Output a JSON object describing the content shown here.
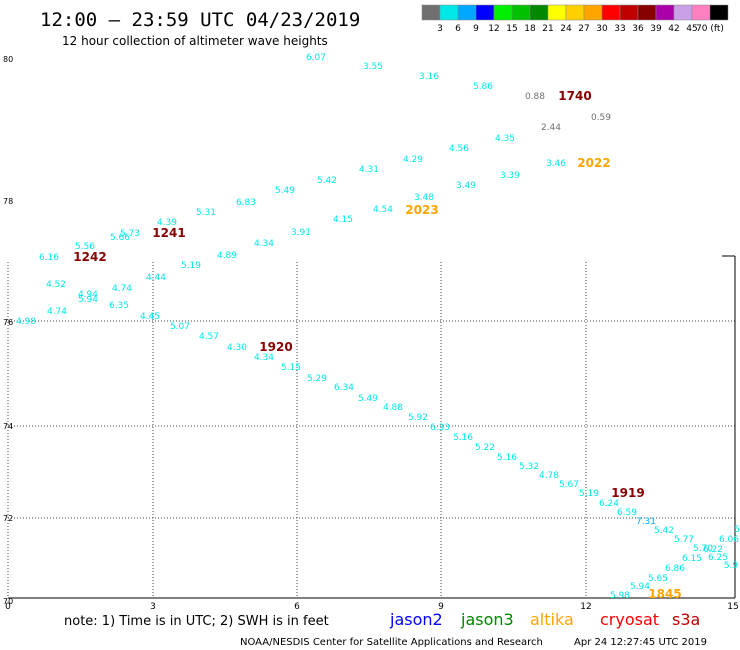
{
  "header": {
    "title": "12:00 – 23:59 UTC 04/23/2019",
    "subtitle": "12 hour collection of altimeter wave heights"
  },
  "colorbar": {
    "colors": [
      "#707070",
      "#00e8e8",
      "#00a8ff",
      "#0000ff",
      "#00ee00",
      "#00c000",
      "#008800",
      "#ffff00",
      "#ffd000",
      "#ffa500",
      "#ff0000",
      "#c00000",
      "#880000",
      "#aa00aa",
      "#c8a0e8",
      "#ff80c0",
      "#000000"
    ],
    "labels": [
      "3",
      "6",
      "9",
      "12",
      "15",
      "18",
      "21",
      "24",
      "27",
      "30",
      "33",
      "36",
      "39",
      "42",
      "45",
      "70 (ft)"
    ]
  },
  "map": {
    "lat_labels": [
      "80",
      "78",
      "76",
      "74",
      "72",
      "70"
    ],
    "lon_labels": [
      "0",
      "3",
      "6",
      "9",
      "12",
      "15"
    ],
    "grid": true
  },
  "observations": [
    {
      "v": "6.07",
      "c": "#00e8e8"
    },
    {
      "v": "3.55",
      "c": "#00e8e8"
    },
    {
      "v": "3.16",
      "c": "#00e8e8"
    },
    {
      "v": "5.86",
      "c": "#00e8e8"
    },
    {
      "v": "0.88",
      "c": "#707070"
    },
    {
      "v": "2.44",
      "c": "#707070"
    },
    {
      "v": "0.59",
      "c": "#707070"
    },
    {
      "v": "4.35",
      "c": "#00e8e8"
    },
    {
      "v": "4.56",
      "c": "#00e8e8"
    },
    {
      "v": "4.29",
      "c": "#00e8e8"
    },
    {
      "v": "4.31",
      "c": "#00e8e8"
    },
    {
      "v": "3.46",
      "c": "#00e8e8"
    },
    {
      "v": "3.39",
      "c": "#00e8e8"
    },
    {
      "v": "3.49",
      "c": "#00e8e8"
    },
    {
      "v": "3.48",
      "c": "#00e8e8"
    },
    {
      "v": "4.54",
      "c": "#00e8e8"
    },
    {
      "v": "4.15",
      "c": "#00e8e8"
    },
    {
      "v": "3.91",
      "c": "#00e8e8"
    },
    {
      "v": "4.34",
      "c": "#00e8e8"
    },
    {
      "v": "4.89",
      "c": "#00e8e8"
    },
    {
      "v": "5.19",
      "c": "#00e8e8"
    },
    {
      "v": "4.44",
      "c": "#00e8e8"
    },
    {
      "v": "5.42",
      "c": "#00e8e8"
    },
    {
      "v": "5.49",
      "c": "#00e8e8"
    },
    {
      "v": "6.83",
      "c": "#00e8e8"
    },
    {
      "v": "5.31",
      "c": "#00e8e8"
    },
    {
      "v": "4.39",
      "c": "#00e8e8"
    },
    {
      "v": "5.73",
      "c": "#00e8e8"
    },
    {
      "v": "5.66",
      "c": "#00e8e8"
    },
    {
      "v": "5.56",
      "c": "#00e8e8"
    },
    {
      "v": "6.16",
      "c": "#00e8e8"
    },
    {
      "v": "4.52",
      "c": "#00e8e8"
    },
    {
      "v": "4.94",
      "c": "#00e8e8"
    },
    {
      "v": "5.94",
      "c": "#00e8e8"
    },
    {
      "v": "4.74",
      "c": "#00e8e8"
    },
    {
      "v": "4.74",
      "c": "#00e8e8"
    },
    {
      "v": "6.35",
      "c": "#00e8e8"
    },
    {
      "v": "4.98",
      "c": "#00e8e8"
    },
    {
      "v": "4.45",
      "c": "#00e8e8"
    },
    {
      "v": "5.07",
      "c": "#00e8e8"
    },
    {
      "v": "4.57",
      "c": "#00e8e8"
    },
    {
      "v": "4.30",
      "c": "#00e8e8"
    },
    {
      "v": "4.34",
      "c": "#00e8e8"
    },
    {
      "v": "5.15",
      "c": "#00e8e8"
    },
    {
      "v": "5.29",
      "c": "#00e8e8"
    },
    {
      "v": "6.34",
      "c": "#00e8e8"
    },
    {
      "v": "5.49",
      "c": "#00e8e8"
    },
    {
      "v": "4.88",
      "c": "#00e8e8"
    },
    {
      "v": "5.92",
      "c": "#00e8e8"
    },
    {
      "v": "6.33",
      "c": "#00e8e8"
    },
    {
      "v": "5.16",
      "c": "#00e8e8"
    },
    {
      "v": "5.22",
      "c": "#00e8e8"
    },
    {
      "v": "5.16",
      "c": "#00e8e8"
    },
    {
      "v": "5.32",
      "c": "#00e8e8"
    },
    {
      "v": "4.78",
      "c": "#00e8e8"
    },
    {
      "v": "5.67",
      "c": "#00e8e8"
    },
    {
      "v": "5.19",
      "c": "#00e8e8"
    },
    {
      "v": "6.24",
      "c": "#00e8e8"
    },
    {
      "v": "6.59",
      "c": "#00e8e8"
    },
    {
      "v": "7.31",
      "c": "#00a8ff"
    },
    {
      "v": "5.42",
      "c": "#00e8e8"
    },
    {
      "v": "5.77",
      "c": "#00e8e8"
    },
    {
      "v": "5.70",
      "c": "#00e8e8"
    },
    {
      "v": "6.22",
      "c": "#00e8e8"
    },
    {
      "v": "6.25",
      "c": "#00e8e8"
    },
    {
      "v": "6.15",
      "c": "#00e8e8"
    },
    {
      "v": "6.06",
      "c": "#00e8e8"
    },
    {
      "v": "5.9",
      "c": "#00e8e8"
    },
    {
      "v": "6.86",
      "c": "#00e8e8"
    },
    {
      "v": "5.65",
      "c": "#00e8e8"
    },
    {
      "v": "5.94",
      "c": "#00e8e8"
    },
    {
      "v": "5.98",
      "c": "#00e8e8"
    },
    {
      "v": "5",
      "c": "#00e8e8"
    }
  ],
  "time_labels": [
    {
      "t": "1740",
      "c": "#880000"
    },
    {
      "t": "2022",
      "c": "#ffa500"
    },
    {
      "t": "2023",
      "c": "#ffa500"
    },
    {
      "t": "1241",
      "c": "#880000"
    },
    {
      "t": "1242",
      "c": "#880000"
    },
    {
      "t": "1920",
      "c": "#880000"
    },
    {
      "t": "1919",
      "c": "#880000"
    },
    {
      "t": "1845",
      "c": "#ffa500"
    }
  ],
  "footer": {
    "note": "note: 1) Time is in UTC; 2) SWH is in feet",
    "satellites": [
      {
        "name": "jason2",
        "color": "#0000ff"
      },
      {
        "name": "jason3",
        "color": "#008800"
      },
      {
        "name": "altika",
        "color": "#ffa500"
      },
      {
        "name": "cryosat",
        "color": "#ff0000"
      },
      {
        "name": "s3a",
        "color": "#c00000"
      }
    ],
    "credit": "NOAA/NESDIS Center for Satellite Applications and Research",
    "timestamp": "Apr 24 12:27:45 UTC 2019"
  }
}
